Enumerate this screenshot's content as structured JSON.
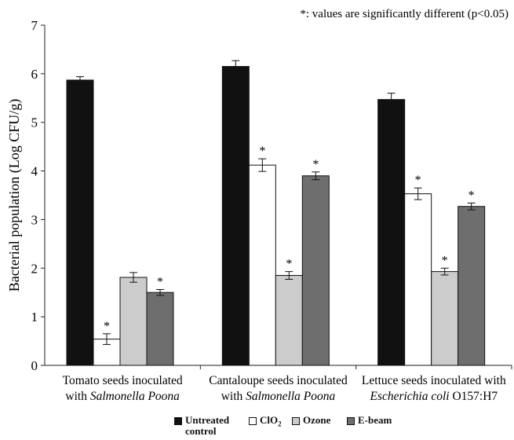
{
  "chart_data": {
    "type": "bar",
    "annotation": "*: values are significantly different (p<0.05)",
    "ylabel": "Bacterial population (Log CFU/g)",
    "xlabel": "",
    "ylim": [
      0,
      7
    ],
    "yticks": [
      "0",
      "1",
      "2",
      "3",
      "4",
      "5",
      "6",
      "7"
    ],
    "grid": false,
    "legend_position": "bottom",
    "categories": [
      {
        "line1": "Tomato seeds inoculated",
        "line2_plain": "with ",
        "line2_italic": "Salmonella Poona",
        "line2_tail": ""
      },
      {
        "line1": "Cantaloupe seeds inoculated",
        "line2_plain": "with ",
        "line2_italic": "Salmonella Poona",
        "line2_tail": ""
      },
      {
        "line1": "Lettuce seeds inoculated with",
        "line2_plain": "",
        "line2_italic": "Escherichia coli",
        "line2_tail": " O157:H7"
      }
    ],
    "series": [
      {
        "name": "Untreated control",
        "color": "#111111",
        "values": [
          5.87,
          6.15,
          5.47
        ],
        "errors": [
          0.07,
          0.12,
          0.13
        ],
        "significant": [
          false,
          false,
          false
        ]
      },
      {
        "name": "ClO2",
        "color": "#ffffff",
        "values": [
          0.54,
          4.12,
          3.53
        ],
        "errors": [
          0.11,
          0.13,
          0.12
        ],
        "significant": [
          true,
          true,
          true
        ]
      },
      {
        "name": "Ozone",
        "color": "#cccccc",
        "values": [
          1.81,
          1.85,
          1.93
        ],
        "errors": [
          0.1,
          0.08,
          0.07
        ],
        "significant": [
          false,
          true,
          true
        ]
      },
      {
        "name": "E-beam",
        "color": "#6e6e6e",
        "values": [
          1.5,
          3.9,
          3.27
        ],
        "errors": [
          0.06,
          0.08,
          0.07
        ],
        "significant": [
          true,
          true,
          true
        ]
      }
    ],
    "significance_marker": "*"
  },
  "legend": {
    "untreated_line1": "Untreated",
    "untreated_line2": "control",
    "clo2_main": "ClO",
    "clo2_sub": "2",
    "ozone": "Ozone",
    "ebeam": "E-beam"
  }
}
